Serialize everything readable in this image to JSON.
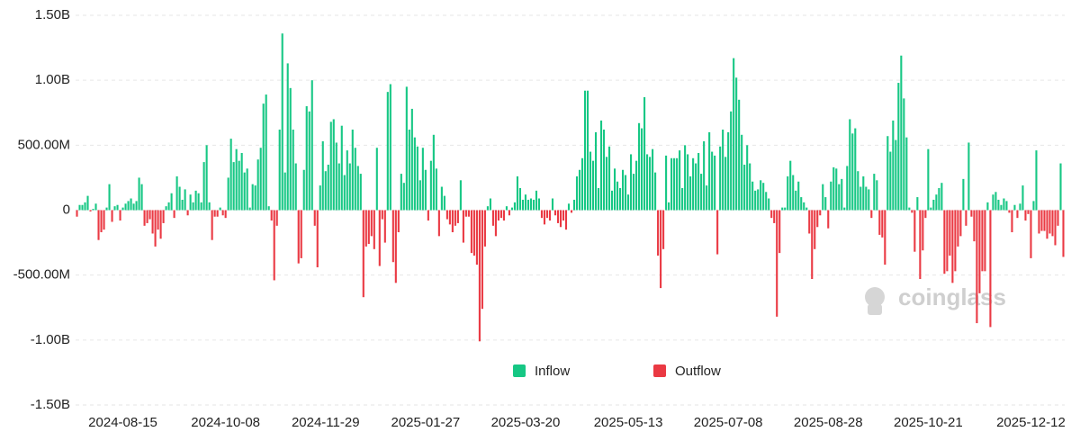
{
  "chart_data": {
    "type": "bar",
    "legend": [
      {
        "name": "Inflow",
        "color": "#16c784"
      },
      {
        "name": "Outflow",
        "color": "#ea3943"
      }
    ],
    "watermark": "coinglass",
    "ylim": [
      -1500,
      1500
    ],
    "yticks": [
      {
        "value": -1500,
        "label": "-1.50B"
      },
      {
        "value": -1000,
        "label": "-1.00B"
      },
      {
        "value": -500,
        "label": "-500.00M"
      },
      0,
      {
        "value": 500,
        "label": "500.00M"
      },
      {
        "value": 1000,
        "label": "1.00B"
      },
      {
        "value": 1500,
        "label": "1.50B"
      }
    ],
    "grid": true,
    "categories": [
      null,
      null,
      null,
      null,
      null,
      null,
      null,
      null,
      null,
      null,
      null,
      null,
      null,
      null,
      null,
      null,
      null,
      "2024-08-15",
      null,
      null,
      null,
      null,
      null,
      null,
      null,
      null,
      null,
      null,
      null,
      null,
      null,
      null,
      null,
      null,
      null,
      null,
      null,
      null,
      null,
      null,
      null,
      null,
      null,
      null,
      null,
      null,
      null,
      null,
      null,
      null,
      null,
      null,
      null,
      null,
      null,
      "2024-10-08",
      null,
      null,
      null,
      null,
      null,
      null,
      null,
      null,
      null,
      null,
      null,
      null,
      null,
      null,
      null,
      null,
      null,
      null,
      null,
      null,
      null,
      null,
      null,
      null,
      null,
      null,
      null,
      null,
      null,
      null,
      null,
      null,
      null,
      null,
      null,
      null,
      "2024-11-29",
      null,
      null,
      null,
      null,
      null,
      null,
      null,
      null,
      null,
      null,
      null,
      null,
      null,
      null,
      null,
      null,
      null,
      null,
      null,
      null,
      null,
      null,
      null,
      null,
      null,
      null,
      null,
      null,
      null,
      null,
      null,
      null,
      null,
      null,
      null,
      null,
      "2025-01-27",
      null,
      null,
      null,
      null,
      null,
      null,
      null,
      null,
      null,
      null,
      null,
      null,
      null,
      null,
      null,
      null,
      null,
      null,
      null,
      null,
      null,
      null,
      null,
      null,
      null,
      null,
      null,
      null,
      null,
      null,
      null,
      null,
      null,
      null,
      null,
      null,
      "2025-03-20",
      null,
      null,
      null,
      null,
      null,
      null,
      null,
      null,
      null,
      null,
      null,
      null,
      null,
      null,
      null,
      null,
      null,
      null,
      null,
      null,
      null,
      null,
      null,
      null,
      null,
      null,
      null,
      null,
      null,
      null,
      null,
      null,
      null,
      null,
      null,
      null,
      null,
      "2025-05-13",
      null,
      null,
      null,
      null,
      null,
      null,
      null,
      null,
      null,
      null,
      null,
      null,
      null,
      null,
      null,
      null,
      null,
      null,
      null,
      null,
      null,
      null,
      null,
      null,
      null,
      null,
      null,
      null,
      null,
      null,
      null,
      null,
      null,
      null,
      null,
      null,
      "2025-07-08",
      null,
      null,
      null,
      null,
      null,
      null,
      null,
      null,
      null,
      null,
      null,
      null,
      null,
      null,
      null,
      null,
      null,
      null,
      null,
      null,
      null,
      null,
      null,
      null,
      null,
      null,
      null,
      null,
      null,
      null,
      null,
      null,
      null,
      null,
      null,
      null,
      "2025-08-28",
      null,
      null,
      null,
      null,
      null,
      null,
      null,
      null,
      null,
      null,
      null,
      null,
      null,
      null,
      null,
      null,
      null,
      null,
      null,
      null,
      null,
      null,
      null,
      null,
      null,
      null,
      null,
      null,
      null,
      null,
      null,
      null,
      null,
      null,
      null,
      null,
      "2025-10-21",
      null,
      null,
      null,
      null,
      null,
      null,
      null,
      null,
      null,
      null,
      null,
      null,
      null,
      null,
      null,
      null,
      null,
      null,
      null,
      null,
      null,
      null,
      null,
      null,
      null,
      null,
      null,
      null,
      null,
      null,
      null,
      null,
      null,
      null,
      null,
      null,
      null,
      "2025-12-12",
      null,
      null,
      null,
      null,
      null,
      null,
      null,
      null,
      null,
      null,
      null,
      null
    ],
    "values": [
      -50,
      40,
      40,
      60,
      110,
      -10,
      10,
      50,
      -230,
      -170,
      -150,
      20,
      200,
      -90,
      30,
      40,
      -80,
      20,
      50,
      70,
      90,
      50,
      70,
      250,
      200,
      -120,
      -100,
      -70,
      -180,
      -280,
      -150,
      -220,
      -100,
      30,
      60,
      130,
      -60,
      260,
      180,
      80,
      160,
      -40,
      120,
      60,
      150,
      130,
      60,
      370,
      500,
      60,
      -230,
      -50,
      -50,
      20,
      -40,
      -60,
      250,
      550,
      370,
      470,
      380,
      440,
      290,
      320,
      20,
      200,
      190,
      390,
      480,
      820,
      890,
      30,
      -80,
      -540,
      -120,
      620,
      1360,
      290,
      1130,
      940,
      620,
      360,
      -410,
      -370,
      310,
      800,
      760,
      1000,
      -120,
      -440,
      190,
      530,
      300,
      350,
      680,
      700,
      520,
      360,
      650,
      270,
      460,
      360,
      620,
      480,
      340,
      280,
      -670,
      -280,
      -260,
      -200,
      -300,
      480,
      -430,
      -70,
      -250,
      910,
      970,
      -400,
      -560,
      -170,
      280,
      210,
      950,
      620,
      780,
      560,
      490,
      230,
      480,
      310,
      -80,
      380,
      580,
      320,
      -200,
      180,
      110,
      -70,
      -110,
      -170,
      -120,
      -100,
      230,
      -250,
      -50,
      -50,
      -330,
      -350,
      -420,
      -1010,
      -760,
      -280,
      30,
      90,
      -120,
      -200,
      -80,
      -60,
      -80,
      30,
      -40,
      20,
      60,
      260,
      170,
      80,
      120,
      80,
      90,
      80,
      150,
      90,
      -60,
      -110,
      -60,
      -80,
      90,
      -40,
      -100,
      -130,
      -80,
      -150,
      50,
      -20,
      80,
      260,
      310,
      400,
      920,
      920,
      450,
      380,
      600,
      170,
      690,
      620,
      410,
      490,
      150,
      320,
      220,
      170,
      310,
      270,
      120,
      430,
      280,
      380,
      670,
      630,
      870,
      430,
      410,
      470,
      290,
      -350,
      -600,
      -300,
      420,
      60,
      400,
      400,
      400,
      460,
      170,
      500,
      430,
      260,
      400,
      360,
      440,
      280,
      530,
      190,
      600,
      450,
      420,
      -340,
      490,
      620,
      410,
      600,
      760,
      1170,
      1020,
      850,
      580,
      350,
      500,
      360,
      220,
      150,
      160,
      230,
      210,
      140,
      90,
      -60,
      -100,
      -820,
      -330,
      20,
      20,
      260,
      380,
      270,
      150,
      220,
      100,
      60,
      20,
      -180,
      -530,
      -300,
      -130,
      -40,
      200,
      100,
      -140,
      220,
      330,
      320,
      200,
      240,
      20,
      340,
      700,
      590,
      630,
      300,
      180,
      260,
      180,
      160,
      -60,
      280,
      230,
      -190,
      -210,
      -420,
      570,
      450,
      690,
      540,
      980,
      1190,
      860,
      560,
      20,
      -20,
      -320,
      100,
      -530,
      -310,
      -60,
      470,
      20,
      80,
      120,
      170,
      210,
      -490,
      -470,
      -350,
      -560,
      -470,
      -280,
      -200,
      240,
      -120,
      520,
      -50,
      -240,
      -870,
      -640,
      -470,
      -470,
      60,
      -900,
      120,
      140,
      80,
      40,
      90,
      70,
      -20,
      -170,
      40,
      -60,
      50,
      190,
      -80,
      -30,
      -370,
      70,
      460,
      -180,
      -160,
      -160,
      -220,
      -180,
      -200,
      -270,
      -120,
      360,
      -360
    ]
  }
}
